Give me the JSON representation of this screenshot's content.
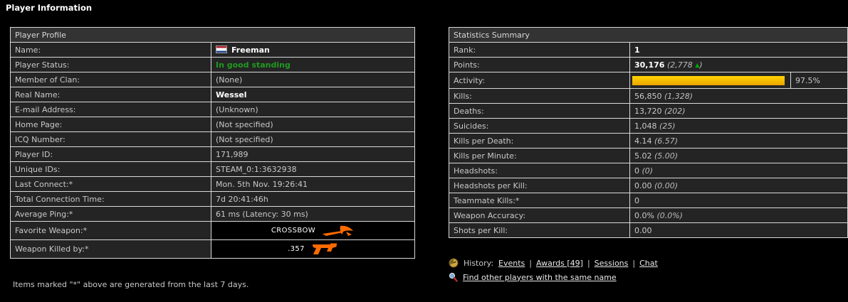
{
  "page": {
    "title": "Player Information",
    "footnote": "Items marked \"*\" above are generated from the last 7 days."
  },
  "colors": {
    "activity_bar": "#ffc800",
    "status_green": "#1f9a1f",
    "weapon_orange": "#ff6a00",
    "row_background": "#242424",
    "header_background": "#333333"
  },
  "profile_table": {
    "header": "Player Profile",
    "rows": [
      {
        "label": "Name:",
        "value": "Freeman",
        "type": "name",
        "flag": "netherlands-flag-icon",
        "bold": true
      },
      {
        "label": "Player Status:",
        "value": "In good standing",
        "type": "status"
      },
      {
        "label": "Member of Clan:",
        "value": "(None)"
      },
      {
        "label": "Real Name:",
        "value": "Wessel",
        "bold": true
      },
      {
        "label": "E-mail Address:",
        "value": "(Unknown)"
      },
      {
        "label": "Home Page:",
        "value": "(Not specified)"
      },
      {
        "label": "ICQ Number:",
        "value": "(Not specified)"
      },
      {
        "label": "Player ID:",
        "value": "171,989"
      },
      {
        "label": "Unique IDs:",
        "value": "STEAM_0:1:3632938"
      },
      {
        "label": "Last Connect:*",
        "value": "Mon. 5th Nov. 19:26:41"
      },
      {
        "label": "Total Connection Time:",
        "value": "7d 20:41:46h"
      },
      {
        "label": "Average Ping:*",
        "value": "61 ms (Latency: 30 ms)"
      },
      {
        "label": "Favorite Weapon:*",
        "value": "CROSSBOW",
        "type": "weapon",
        "icon": "crossbow-icon"
      },
      {
        "label": "Weapon Killed by:*",
        "value": ".357",
        "type": "weapon",
        "icon": "revolver-icon"
      }
    ]
  },
  "stats_table": {
    "header": "Statistics Summary",
    "rows": [
      {
        "label": "Rank:",
        "value": "1",
        "bold": true
      },
      {
        "label": "Points:",
        "value": "30,176",
        "bold": true,
        "extra_open": "(2,778",
        "trend": "up",
        "extra_close": ")"
      },
      {
        "label": "Activity:",
        "type": "activity",
        "percent": 97.5,
        "percent_label": "97.5%"
      },
      {
        "label": "Kills:",
        "value": "56,850",
        "extra": "(1,328)"
      },
      {
        "label": "Deaths:",
        "value": "13,720",
        "extra": "(202)"
      },
      {
        "label": "Suicides:",
        "value": "1,048",
        "extra": "(25)"
      },
      {
        "label": "Kills per Death:",
        "value": "4.14",
        "extra": "(6.57)"
      },
      {
        "label": "Kills per Minute:",
        "value": "5.02",
        "extra": "(5.00)"
      },
      {
        "label": "Headshots:",
        "value": "0",
        "extra": "(0)"
      },
      {
        "label": "Headshots per Kill:",
        "value": "0.00",
        "extra": "(0.00)"
      },
      {
        "label": "Teammate Kills:*",
        "value": "0"
      },
      {
        "label": "Weapon Accuracy:",
        "value": "0.0%",
        "extra": "(0.0%)"
      },
      {
        "label": "Shots per Kill:",
        "value": "0.00"
      }
    ]
  },
  "links": {
    "history_label": "History:",
    "items": [
      "Events",
      "Awards [49]",
      "Sessions",
      "Chat"
    ],
    "separator": "|",
    "find_players": "Find other players with the same name"
  }
}
